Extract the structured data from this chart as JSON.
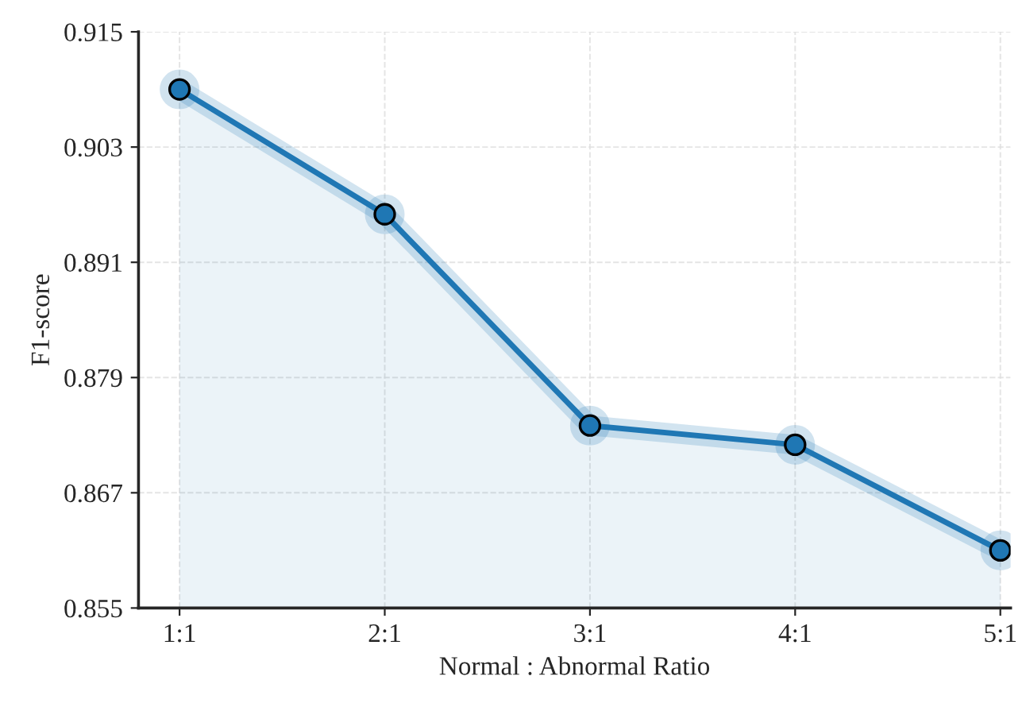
{
  "chart_data": {
    "type": "area",
    "xlabel": "Normal : Abnormal Ratio",
    "ylabel": "F1-score",
    "categories": [
      "1:1",
      "2:1",
      "3:1",
      "4:1",
      "5:1"
    ],
    "series": [
      {
        "color": "#1f77b4",
        "values": [
          0.909,
          0.896,
          0.874,
          0.872,
          0.861
        ]
      }
    ],
    "ylim": [
      0.855,
      0.915
    ],
    "yticks": [
      0.855,
      0.867,
      0.879,
      0.891,
      0.903,
      0.915
    ],
    "grid": true,
    "marker": "circle",
    "line_style": "solid"
  }
}
